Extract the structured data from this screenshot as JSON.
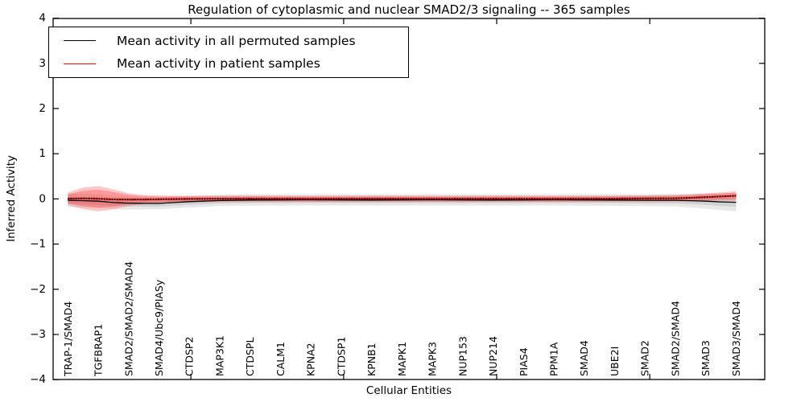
{
  "chart_data": {
    "type": "line",
    "title": "Regulation of cytoplasmic and nuclear SMAD2/3 signaling -- 365 samples",
    "xlabel": "Cellular Entities",
    "ylabel": "Inferred Activity",
    "ylim": [
      -4,
      4
    ],
    "grid": false,
    "legend_position": "upper left",
    "ytick_values": [
      4,
      3,
      2,
      1,
      0,
      -1,
      -2,
      -3,
      -4
    ],
    "ytick_labels": [
      "4",
      "3",
      "2",
      "1",
      "0",
      "−1",
      "−2",
      "−3",
      "−4"
    ],
    "xtick_positions": [
      4.05,
      9.08,
      14.12,
      19.16
    ],
    "categories": [
      "TRAP-1/SMAD4",
      "TGFBRAP1",
      "SMAD2/SMAD2/SMAD4",
      "SMAD4/Ubc9/PIASy",
      "CTDSP2",
      "MAP3K1",
      "CTDSPL",
      "CALM1",
      "KPNA2",
      "CTDSP1",
      "KPNB1",
      "MAPK1",
      "MAPK3",
      "NUP153",
      "NUP214",
      "PIAS4",
      "PPM1A",
      "SMAD4",
      "UBE2I",
      "SMAD2",
      "SMAD2/SMAD4",
      "SMAD3",
      "SMAD3/SMAD4"
    ],
    "sample_count": 365,
    "series": [
      {
        "name": "Mean activity in all permuted samples",
        "color": "#000000",
        "x": [
          0,
          0.5,
          1,
          1.5,
          2,
          2.5,
          3,
          3.5,
          4,
          5,
          6,
          8,
          10,
          12,
          14,
          16,
          18,
          19,
          20,
          20.5,
          21,
          21.5,
          22
        ],
        "y": [
          -0.03,
          -0.04,
          -0.05,
          -0.08,
          -0.095,
          -0.1,
          -0.1,
          -0.08,
          -0.06,
          -0.035,
          -0.025,
          -0.02,
          -0.025,
          -0.02,
          -0.025,
          -0.02,
          -0.025,
          -0.03,
          -0.03,
          -0.04,
          -0.05,
          -0.065,
          -0.075
        ]
      },
      {
        "name": "Mean activity in patient samples",
        "color": "#ff0000",
        "x": [
          0,
          0.5,
          1,
          1.5,
          2,
          2.5,
          3,
          3.5,
          4,
          5,
          6,
          8,
          10,
          12,
          14,
          16,
          18,
          19,
          20,
          20.5,
          21,
          21.5,
          22
        ],
        "y": [
          0.005,
          0.01,
          0.005,
          -0.01,
          -0.015,
          -0.012,
          -0.008,
          -0.003,
          0.0,
          0.003,
          0.005,
          0.0,
          0.004,
          0.0,
          0.004,
          0.0,
          0.005,
          0.01,
          0.015,
          0.025,
          0.04,
          0.055,
          0.07
        ]
      }
    ],
    "bands": [
      {
        "name": "permuted-std-band-outer",
        "color": "#808080",
        "opacity": 0.18,
        "x": [
          0,
          0.5,
          1,
          1.5,
          2,
          2.5,
          3,
          3.5,
          4,
          5,
          6,
          8,
          10,
          12,
          14,
          16,
          18,
          19,
          20,
          20.5,
          21,
          21.5,
          22
        ],
        "center": [
          -0.03,
          -0.04,
          -0.05,
          -0.08,
          -0.095,
          -0.1,
          -0.1,
          -0.08,
          -0.06,
          -0.035,
          -0.025,
          -0.02,
          -0.025,
          -0.02,
          -0.025,
          -0.02,
          -0.025,
          -0.03,
          -0.03,
          -0.04,
          -0.05,
          -0.065,
          -0.075
        ],
        "half_width": [
          0.15,
          0.15,
          0.15,
          0.145,
          0.14,
          0.135,
          0.13,
          0.13,
          0.13,
          0.125,
          0.125,
          0.125,
          0.125,
          0.125,
          0.125,
          0.125,
          0.13,
          0.13,
          0.135,
          0.15,
          0.165,
          0.185,
          0.2
        ]
      },
      {
        "name": "permuted-std-band-inner",
        "color": "#808080",
        "opacity": 0.22,
        "x": [
          0,
          0.5,
          1,
          1.5,
          2,
          2.5,
          3,
          3.5,
          4,
          5,
          6,
          8,
          10,
          12,
          14,
          16,
          18,
          19,
          20,
          20.5,
          21,
          21.5,
          22
        ],
        "center": [
          -0.03,
          -0.04,
          -0.05,
          -0.08,
          -0.095,
          -0.1,
          -0.1,
          -0.08,
          -0.06,
          -0.035,
          -0.025,
          -0.02,
          -0.025,
          -0.02,
          -0.025,
          -0.02,
          -0.025,
          -0.03,
          -0.03,
          -0.04,
          -0.05,
          -0.065,
          -0.075
        ],
        "half_width": [
          0.08,
          0.08,
          0.08,
          0.075,
          0.07,
          0.07,
          0.07,
          0.07,
          0.07,
          0.065,
          0.065,
          0.065,
          0.065,
          0.065,
          0.065,
          0.065,
          0.065,
          0.07,
          0.07,
          0.075,
          0.08,
          0.09,
          0.1
        ]
      },
      {
        "name": "patient-std-band-outer",
        "color": "#ff2a2a",
        "opacity": 0.26,
        "x": [
          0,
          0.5,
          1,
          1.5,
          2,
          2.5,
          3,
          3.5,
          4,
          5,
          6,
          8,
          10,
          12,
          14,
          16,
          18,
          19,
          20,
          20.5,
          21,
          21.5,
          22
        ],
        "center": [
          0.005,
          0.01,
          0.005,
          -0.01,
          -0.015,
          -0.012,
          -0.008,
          -0.003,
          0.0,
          0.003,
          0.005,
          0.0,
          0.004,
          0.0,
          0.004,
          0.0,
          0.005,
          0.01,
          0.015,
          0.025,
          0.04,
          0.055,
          0.07
        ],
        "half_width": [
          0.14,
          0.24,
          0.28,
          0.22,
          0.14,
          0.1,
          0.085,
          0.075,
          0.07,
          0.07,
          0.07,
          0.07,
          0.07,
          0.07,
          0.07,
          0.07,
          0.07,
          0.07,
          0.075,
          0.08,
          0.085,
          0.09,
          0.1
        ]
      },
      {
        "name": "patient-std-band-inner",
        "color": "#ff2a2a",
        "opacity": 0.3,
        "x": [
          0,
          0.5,
          1,
          1.5,
          2,
          2.5,
          3,
          3.5,
          4,
          5,
          6,
          8,
          10,
          12,
          14,
          16,
          18,
          19,
          20,
          20.5,
          21,
          21.5,
          22
        ],
        "center": [
          0.005,
          0.01,
          0.005,
          -0.01,
          -0.015,
          -0.012,
          -0.008,
          -0.003,
          0.0,
          0.003,
          0.005,
          0.0,
          0.004,
          0.0,
          0.004,
          0.0,
          0.005,
          0.01,
          0.015,
          0.025,
          0.04,
          0.055,
          0.07
        ],
        "half_width": [
          0.1,
          0.17,
          0.2,
          0.16,
          0.1,
          0.07,
          0.06,
          0.055,
          0.05,
          0.05,
          0.05,
          0.05,
          0.05,
          0.05,
          0.05,
          0.05,
          0.05,
          0.05,
          0.055,
          0.055,
          0.06,
          0.065,
          0.07
        ]
      }
    ],
    "legend": [
      {
        "label": "Mean activity in all permuted samples",
        "color": "#000000"
      },
      {
        "label": "Mean activity in patient samples",
        "color": "#ff0000"
      }
    ]
  }
}
